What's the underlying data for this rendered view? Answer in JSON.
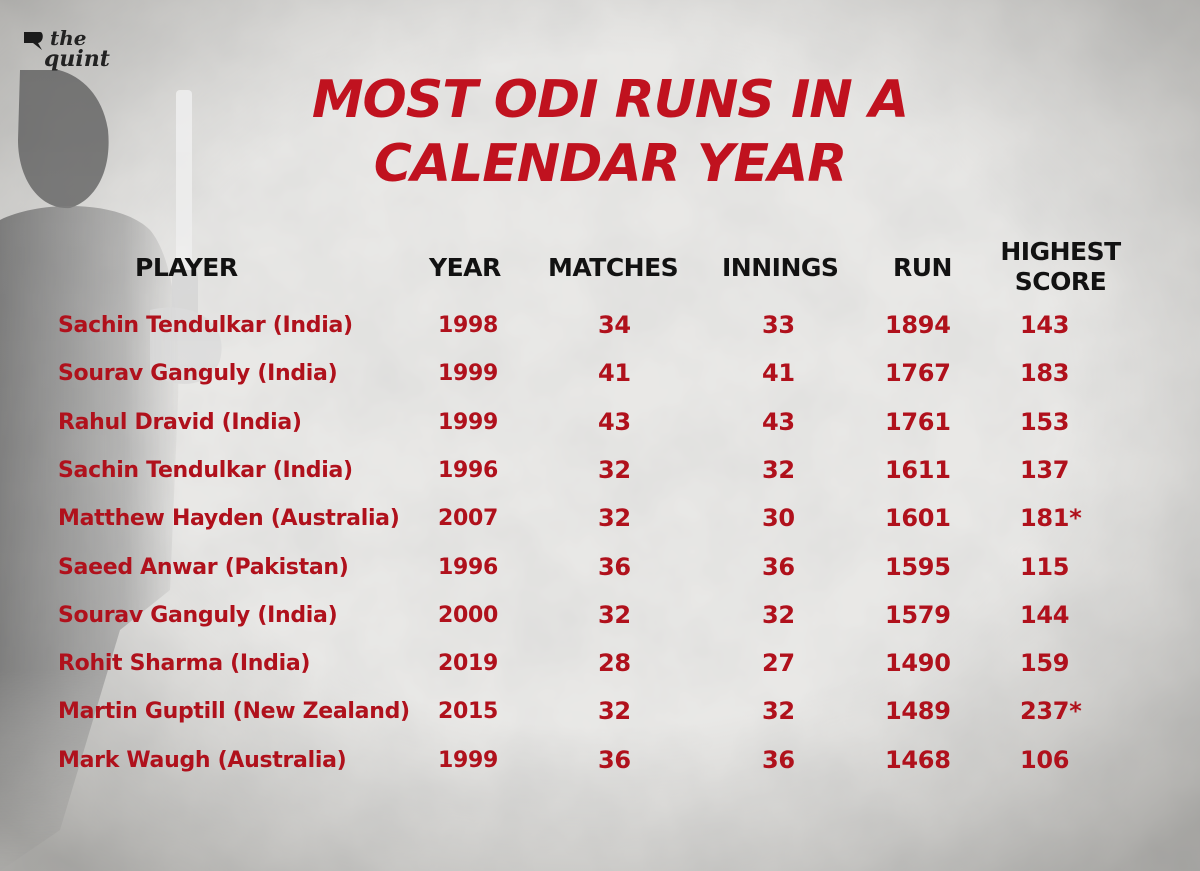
{
  "brand": {
    "line1": "the",
    "line2": "quint"
  },
  "title": {
    "line1": "MOST ODI RUNS IN A",
    "line2": "CALENDAR YEAR"
  },
  "chart_data": {
    "type": "table",
    "columns": [
      "PLAYER",
      "YEAR",
      "MATCHES",
      "INNINGS",
      "RUN",
      "HIGHEST SCORE"
    ],
    "rows": [
      [
        "Sachin Tendulkar (India)",
        "1998",
        "34",
        "33",
        "1894",
        "143"
      ],
      [
        "Sourav Ganguly (India)",
        "1999",
        "41",
        "41",
        "1767",
        "183"
      ],
      [
        "Rahul Dravid (India)",
        "1999",
        "43",
        "43",
        "1761",
        "153"
      ],
      [
        "Sachin Tendulkar (India)",
        "1996",
        "32",
        "32",
        "1611",
        "137"
      ],
      [
        "Matthew Hayden (Australia)",
        "2007",
        "32",
        "30",
        "1601",
        "181*"
      ],
      [
        "Saeed Anwar (Pakistan)",
        "1996",
        "36",
        "36",
        "1595",
        "115"
      ],
      [
        "Sourav Ganguly (India)",
        "2000",
        "32",
        "32",
        "1579",
        "144"
      ],
      [
        "Rohit Sharma (India)",
        "2019",
        "28",
        "27",
        "1490",
        "159"
      ],
      [
        "Martin Guptill (New Zealand)",
        "2015",
        "32",
        "32",
        "1489",
        "237*"
      ],
      [
        "Mark Waugh (Australia)",
        "1999",
        "36",
        "36",
        "1468",
        "106"
      ]
    ]
  },
  "colors": {
    "accent": "#c0121f",
    "header_text": "#121212",
    "background": "#dcdbd8"
  }
}
